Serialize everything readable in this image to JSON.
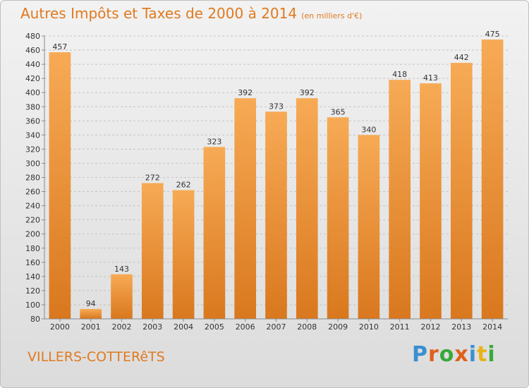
{
  "title": "Autres Impôts et Taxes de 2000 à 2014",
  "subtitle": "(en milliers d'€)",
  "city": "VILLERS-COTTERêTS",
  "logo": {
    "text": "Proxiti",
    "colors": [
      "#3a8fd0",
      "#e0601a",
      "#3aa83a",
      "#e0601a",
      "#3a8fd0",
      "#e8b21a",
      "#3aa83a"
    ]
  },
  "colors": {
    "bar_light": "#f7aa55",
    "bar_dark": "#d9781e",
    "accent": "#e07a1f"
  },
  "chart_data": {
    "type": "bar",
    "title": "Autres Impôts et Taxes de 2000 à 2014",
    "subtitle": "(en milliers d'€)",
    "categories": [
      "2000",
      "2001",
      "2002",
      "2003",
      "2004",
      "2005",
      "2006",
      "2007",
      "2008",
      "2009",
      "2010",
      "2011",
      "2012",
      "2013",
      "2014"
    ],
    "values": [
      457,
      94,
      143,
      272,
      262,
      323,
      392,
      373,
      392,
      365,
      340,
      418,
      413,
      442,
      475
    ],
    "ylim": [
      80,
      480
    ],
    "yticks": [
      80,
      100,
      120,
      140,
      160,
      180,
      200,
      220,
      240,
      260,
      280,
      300,
      320,
      340,
      360,
      380,
      400,
      420,
      440,
      460,
      480
    ],
    "grid": true,
    "xlabel": "",
    "ylabel": ""
  }
}
